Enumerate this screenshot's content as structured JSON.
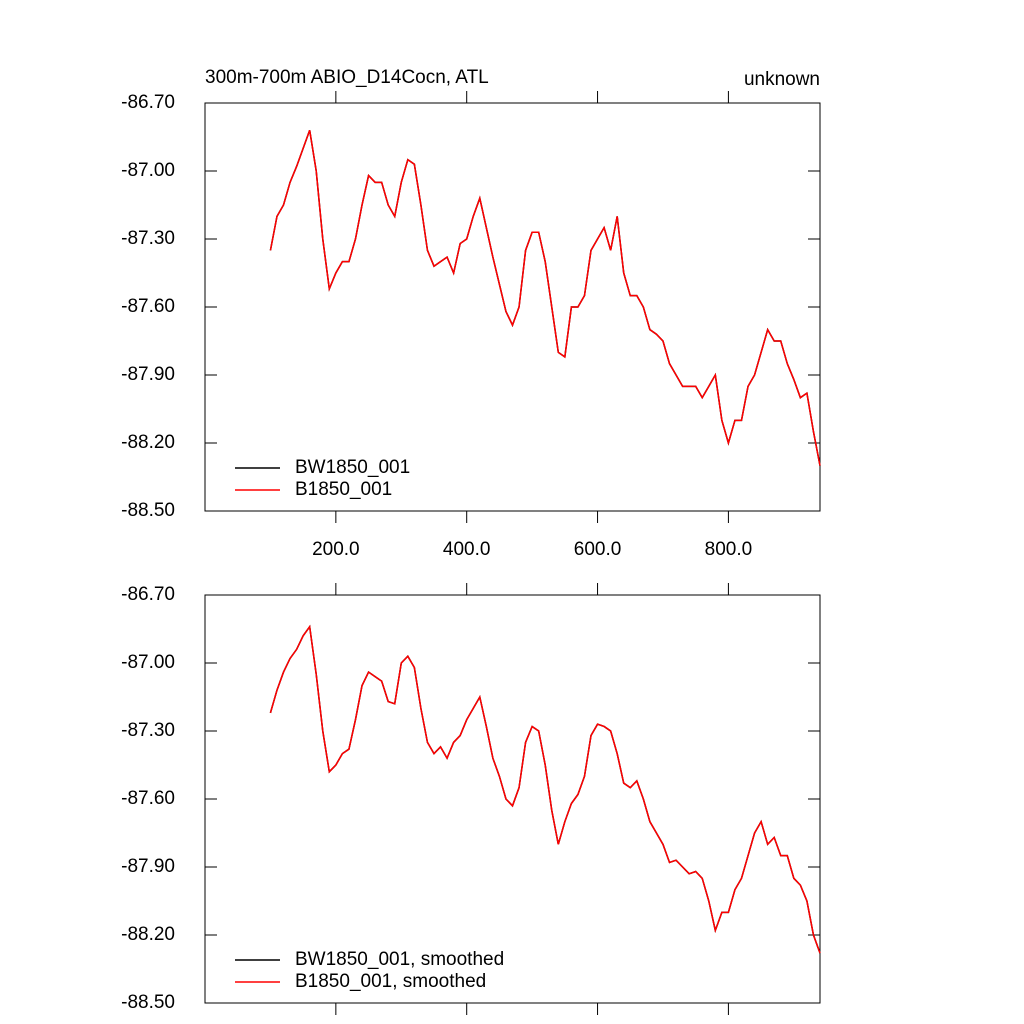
{
  "chart_data": [
    {
      "type": "line",
      "title": "300m-700m ABIO_D14Cocn, ATL",
      "subtitle_right": "unknown",
      "x": [
        100,
        110,
        120,
        130,
        140,
        150,
        160,
        170,
        180,
        190,
        200,
        210,
        220,
        230,
        240,
        250,
        260,
        270,
        280,
        290,
        300,
        310,
        320,
        330,
        340,
        350,
        360,
        370,
        380,
        390,
        400,
        410,
        420,
        430,
        440,
        450,
        460,
        470,
        480,
        490,
        500,
        510,
        520,
        530,
        540,
        550,
        560,
        570,
        580,
        590,
        600,
        610,
        620,
        630,
        640,
        650,
        660,
        670,
        680,
        690,
        700,
        710,
        720,
        730,
        740,
        750,
        760,
        770,
        780,
        790,
        800,
        810,
        820,
        830,
        840,
        850,
        860,
        870,
        880,
        890,
        900,
        910,
        920,
        930,
        940
      ],
      "series": [
        {
          "name": "BW1850_001",
          "color": "#000000",
          "values": [
            -87.35,
            -87.2,
            -87.15,
            -87.05,
            -86.98,
            -86.9,
            -86.82,
            -87.0,
            -87.3,
            -87.52,
            -87.45,
            -87.4,
            -87.4,
            -87.3,
            -87.15,
            -87.02,
            -87.05,
            -87.05,
            -87.15,
            -87.2,
            -87.05,
            -86.95,
            -86.97,
            -87.15,
            -87.35,
            -87.42,
            -87.4,
            -87.38,
            -87.45,
            -87.32,
            -87.3,
            -87.2,
            -87.12,
            -87.25,
            -87.38,
            -87.5,
            -87.62,
            -87.68,
            -87.6,
            -87.35,
            -87.27,
            -87.27,
            -87.4,
            -87.6,
            -87.8,
            -87.82,
            -87.6,
            -87.6,
            -87.55,
            -87.35,
            -87.3,
            -87.25,
            -87.35,
            -87.2,
            -87.45,
            -87.55,
            -87.55,
            -87.6,
            -87.7,
            -87.72,
            -87.75,
            -87.85,
            -87.9,
            -87.95,
            -87.95,
            -87.95,
            -88.0,
            -87.95,
            -87.9,
            -88.1,
            -88.2,
            -88.1,
            -88.1,
            -87.95,
            -87.9,
            -87.8,
            -87.7,
            -87.75,
            -87.75,
            -87.85,
            -87.92,
            -88.0,
            -87.98,
            -88.15,
            -88.3
          ]
        },
        {
          "name": "B1850_001",
          "color": "#ff0000",
          "values": [
            -87.35,
            -87.2,
            -87.15,
            -87.05,
            -86.98,
            -86.9,
            -86.82,
            -87.0,
            -87.3,
            -87.52,
            -87.45,
            -87.4,
            -87.4,
            -87.3,
            -87.15,
            -87.02,
            -87.05,
            -87.05,
            -87.15,
            -87.2,
            -87.05,
            -86.95,
            -86.97,
            -87.15,
            -87.35,
            -87.42,
            -87.4,
            -87.38,
            -87.45,
            -87.32,
            -87.3,
            -87.2,
            -87.12,
            -87.25,
            -87.38,
            -87.5,
            -87.62,
            -87.68,
            -87.6,
            -87.35,
            -87.27,
            -87.27,
            -87.4,
            -87.6,
            -87.8,
            -87.82,
            -87.6,
            -87.6,
            -87.55,
            -87.35,
            -87.3,
            -87.25,
            -87.35,
            -87.2,
            -87.45,
            -87.55,
            -87.55,
            -87.6,
            -87.7,
            -87.72,
            -87.75,
            -87.85,
            -87.9,
            -87.95,
            -87.95,
            -87.95,
            -88.0,
            -87.95,
            -87.9,
            -88.1,
            -88.2,
            -88.1,
            -88.1,
            -87.95,
            -87.9,
            -87.8,
            -87.7,
            -87.75,
            -87.75,
            -87.85,
            -87.92,
            -88.0,
            -87.98,
            -88.15,
            -88.3
          ]
        }
      ],
      "xlim": [
        0,
        940
      ],
      "xticks": [
        {
          "value": 200,
          "label": "200.0"
        },
        {
          "value": 400,
          "label": "400.0"
        },
        {
          "value": 600,
          "label": "600.0"
        },
        {
          "value": 800,
          "label": "800.0"
        }
      ],
      "ylim": [
        -88.5,
        -86.7
      ],
      "yticks": [
        {
          "value": -86.7,
          "label": "-86.70"
        },
        {
          "value": -87.0,
          "label": "-87.00"
        },
        {
          "value": -87.3,
          "label": "-87.30"
        },
        {
          "value": -87.6,
          "label": "-87.60"
        },
        {
          "value": -87.9,
          "label": "-87.90"
        },
        {
          "value": -88.2,
          "label": "-88.20"
        },
        {
          "value": -88.5,
          "label": "-88.50"
        }
      ],
      "legend": "lower-left"
    },
    {
      "type": "line",
      "x": [
        100,
        110,
        120,
        130,
        140,
        150,
        160,
        170,
        180,
        190,
        200,
        210,
        220,
        230,
        240,
        250,
        260,
        270,
        280,
        290,
        300,
        310,
        320,
        330,
        340,
        350,
        360,
        370,
        380,
        390,
        400,
        410,
        420,
        430,
        440,
        450,
        460,
        470,
        480,
        490,
        500,
        510,
        520,
        530,
        540,
        550,
        560,
        570,
        580,
        590,
        600,
        610,
        620,
        630,
        640,
        650,
        660,
        670,
        680,
        690,
        700,
        710,
        720,
        730,
        740,
        750,
        760,
        770,
        780,
        790,
        800,
        810,
        820,
        830,
        840,
        850,
        860,
        870,
        880,
        890,
        900,
        910,
        920,
        930,
        940
      ],
      "series": [
        {
          "name": "BW1850_001, smoothed",
          "color": "#000000",
          "values": [
            -87.22,
            -87.12,
            -87.04,
            -86.98,
            -86.94,
            -86.88,
            -86.84,
            -87.05,
            -87.3,
            -87.48,
            -87.45,
            -87.4,
            -87.38,
            -87.25,
            -87.1,
            -87.04,
            -87.06,
            -87.08,
            -87.17,
            -87.18,
            -87.0,
            -86.97,
            -87.02,
            -87.2,
            -87.35,
            -87.4,
            -87.37,
            -87.42,
            -87.35,
            -87.32,
            -87.25,
            -87.2,
            -87.15,
            -87.28,
            -87.42,
            -87.5,
            -87.6,
            -87.63,
            -87.55,
            -87.35,
            -87.28,
            -87.3,
            -87.45,
            -87.65,
            -87.8,
            -87.7,
            -87.62,
            -87.58,
            -87.5,
            -87.32,
            -87.27,
            -87.28,
            -87.3,
            -87.4,
            -87.53,
            -87.55,
            -87.52,
            -87.6,
            -87.7,
            -87.75,
            -87.8,
            -87.88,
            -87.87,
            -87.9,
            -87.93,
            -87.92,
            -87.95,
            -88.05,
            -88.18,
            -88.1,
            -88.1,
            -88.0,
            -87.95,
            -87.85,
            -87.75,
            -87.7,
            -87.8,
            -87.77,
            -87.85,
            -87.85,
            -87.95,
            -87.98,
            -88.05,
            -88.2,
            -88.28
          ]
        },
        {
          "name": "B1850_001, smoothed",
          "color": "#ff0000",
          "values": [
            -87.22,
            -87.12,
            -87.04,
            -86.98,
            -86.94,
            -86.88,
            -86.84,
            -87.05,
            -87.3,
            -87.48,
            -87.45,
            -87.4,
            -87.38,
            -87.25,
            -87.1,
            -87.04,
            -87.06,
            -87.08,
            -87.17,
            -87.18,
            -87.0,
            -86.97,
            -87.02,
            -87.2,
            -87.35,
            -87.4,
            -87.37,
            -87.42,
            -87.35,
            -87.32,
            -87.25,
            -87.2,
            -87.15,
            -87.28,
            -87.42,
            -87.5,
            -87.6,
            -87.63,
            -87.55,
            -87.35,
            -87.28,
            -87.3,
            -87.45,
            -87.65,
            -87.8,
            -87.7,
            -87.62,
            -87.58,
            -87.5,
            -87.32,
            -87.27,
            -87.28,
            -87.3,
            -87.4,
            -87.53,
            -87.55,
            -87.52,
            -87.6,
            -87.7,
            -87.75,
            -87.8,
            -87.88,
            -87.87,
            -87.9,
            -87.93,
            -87.92,
            -87.95,
            -88.05,
            -88.18,
            -88.1,
            -88.1,
            -88.0,
            -87.95,
            -87.85,
            -87.75,
            -87.7,
            -87.8,
            -87.77,
            -87.85,
            -87.85,
            -87.95,
            -87.98,
            -88.05,
            -88.2,
            -88.28
          ]
        }
      ],
      "xlim": [
        0,
        940
      ],
      "xticks": [
        200,
        400,
        600,
        800
      ],
      "xtick_labels": false,
      "ylim": [
        -88.5,
        -86.7
      ],
      "yticks": [
        {
          "value": -86.7,
          "label": "-86.70"
        },
        {
          "value": -87.0,
          "label": "-87.00"
        },
        {
          "value": -87.3,
          "label": "-87.30"
        },
        {
          "value": -87.6,
          "label": "-87.60"
        },
        {
          "value": -87.9,
          "label": "-87.90"
        },
        {
          "value": -88.2,
          "label": "-88.20"
        },
        {
          "value": -88.5,
          "label": "-88.50"
        }
      ],
      "legend": "lower-left"
    }
  ]
}
